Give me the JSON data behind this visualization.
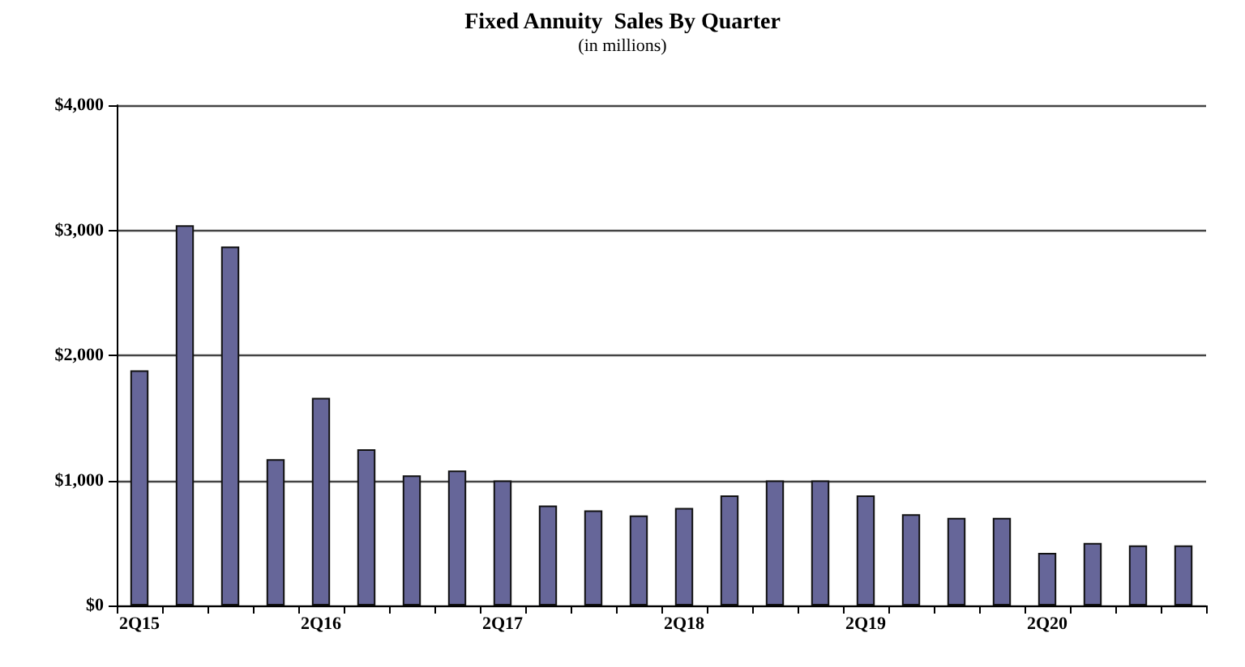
{
  "chart_data": {
    "type": "bar",
    "title": "Fixed Annuity  Sales By Quarter",
    "subtitle": "(in millions)",
    "categories": [
      "2Q15",
      null,
      null,
      null,
      "2Q16",
      null,
      null,
      null,
      "2Q17",
      null,
      null,
      null,
      "2Q18",
      null,
      null,
      null,
      "2Q19",
      null,
      null,
      null,
      "2Q20",
      null,
      null,
      null
    ],
    "values": [
      1880,
      3040,
      2870,
      1170,
      1660,
      1250,
      1040,
      1080,
      1000,
      800,
      760,
      720,
      780,
      880,
      1000,
      1000,
      880,
      730,
      700,
      700,
      420,
      500,
      480,
      480
    ],
    "color": "#666699",
    "ylim": [
      0,
      4000
    ],
    "yticks": [
      {
        "value": 0,
        "label": "$0"
      },
      {
        "value": 1000,
        "label": "$1,000"
      },
      {
        "value": 2000,
        "label": "$2,000"
      },
      {
        "value": 3000,
        "label": "$3,000"
      },
      {
        "value": 4000,
        "label": "$4,000"
      }
    ],
    "grid": "y"
  }
}
